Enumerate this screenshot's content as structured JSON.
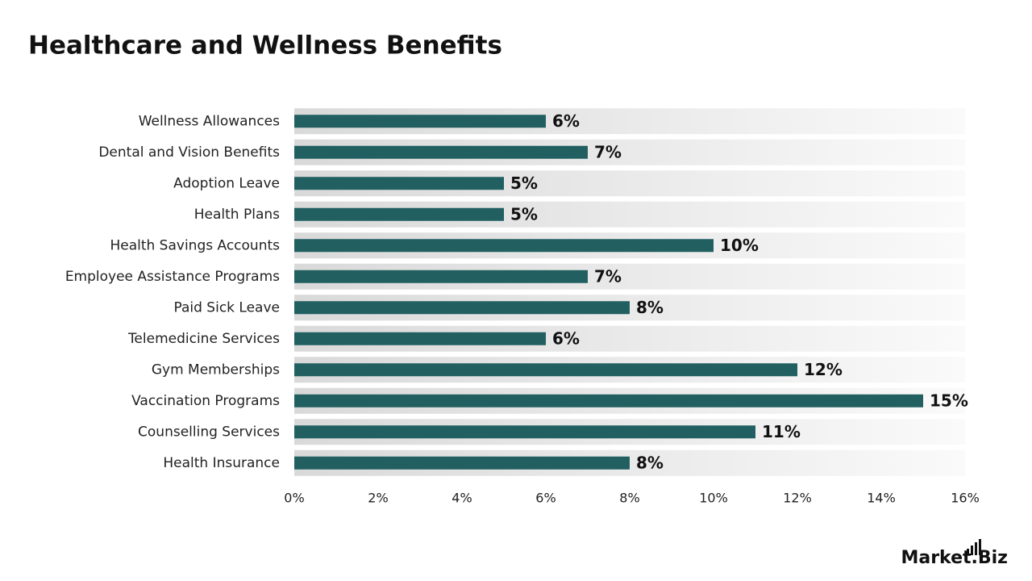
{
  "chart_data": {
    "type": "bar",
    "orientation": "horizontal",
    "title": "Healthcare and Wellness Benefits",
    "categories": [
      "Wellness Allowances",
      "Dental and Vision Benefits",
      "Adoption Leave",
      "Health Plans",
      "Health Savings Accounts",
      "Employee Assistance Programs",
      "Paid Sick Leave",
      "Telemedicine Services",
      "Gym Memberships",
      "Vaccination Programs",
      "Counselling Services",
      "Health Insurance"
    ],
    "values": [
      6,
      7,
      5,
      5,
      10,
      7,
      8,
      6,
      12,
      15,
      11,
      8
    ],
    "value_labels": [
      "6%",
      "7%",
      "5%",
      "5%",
      "10%",
      "7%",
      "8%",
      "6%",
      "12%",
      "15%",
      "11%",
      "8%"
    ],
    "color": "#215f61",
    "xlim": [
      0,
      16
    ],
    "xticks": [
      {
        "value": 0,
        "label": "0%"
      },
      {
        "value": 2,
        "label": "2%"
      },
      {
        "value": 4,
        "label": "4%"
      },
      {
        "value": 6,
        "label": "6%"
      },
      {
        "value": 8,
        "label": "8%"
      },
      {
        "value": 10,
        "label": "10%"
      },
      {
        "value": 12,
        "label": "12%"
      },
      {
        "value": 14,
        "label": "14%"
      },
      {
        "value": 16,
        "label": "16%"
      }
    ],
    "grid": false,
    "brand": "Market.Biz"
  }
}
